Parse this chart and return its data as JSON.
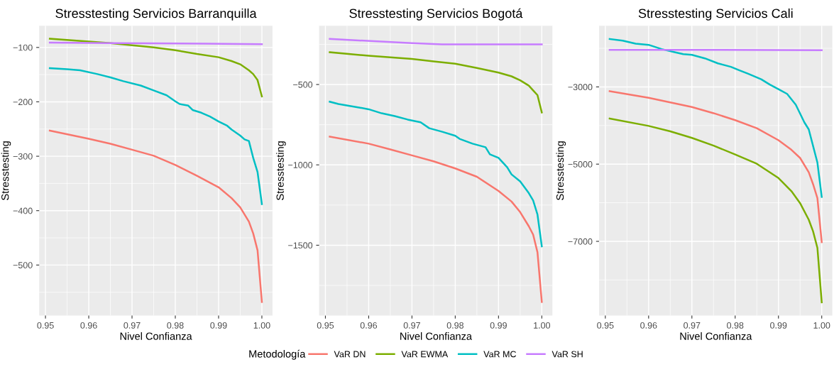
{
  "chart_data": [
    {
      "type": "line",
      "title": "Stresstesting Servicios Barranquilla",
      "xlabel": "Nivel Confianza",
      "ylabel": "Stresstesting",
      "xlim": [
        0.94855,
        1.00245
      ],
      "xticks": [
        {
          "value": 0.95,
          "label": "0.95"
        },
        {
          "value": 0.96,
          "label": "0.96"
        },
        {
          "value": 0.97,
          "label": "0.97"
        },
        {
          "value": 0.98,
          "label": "0.98"
        },
        {
          "value": 0.99,
          "label": "0.99"
        },
        {
          "value": 1.0,
          "label": "1.00"
        }
      ],
      "ylim": [
        -593,
        -60
      ],
      "yticks": [
        -500,
        -400,
        -300,
        -200,
        -100
      ],
      "grid": true,
      "legend": "bottom",
      "legend_title": "Metodología",
      "series": [
        {
          "name": "VaR DN",
          "color": "#f8766d",
          "x": [
            0.951,
            0.96,
            0.965,
            0.97,
            0.975,
            0.98,
            0.985,
            0.99,
            0.993,
            0.995,
            0.997,
            0.998,
            0.999,
            1.0
          ],
          "values": [
            -253,
            -268,
            -277,
            -288,
            -299,
            -316,
            -336,
            -357,
            -377,
            -394,
            -420,
            -442,
            -473,
            -568
          ]
        },
        {
          "name": "VaR EWMA",
          "color": "#7cae00",
          "x": [
            0.951,
            0.96,
            0.965,
            0.97,
            0.975,
            0.98,
            0.985,
            0.99,
            0.993,
            0.995,
            0.997,
            0.998,
            0.999,
            1.0
          ],
          "values": [
            -84,
            -89,
            -92,
            -96,
            -100,
            -105,
            -112,
            -118,
            -125,
            -131,
            -142,
            -149,
            -160,
            -190
          ]
        },
        {
          "name": "VaR MC",
          "color": "#00bfc4",
          "x": [
            0.951,
            0.955,
            0.958,
            0.962,
            0.965,
            0.968,
            0.972,
            0.975,
            0.978,
            0.98,
            0.981,
            0.983,
            0.984,
            0.986,
            0.988,
            0.99,
            0.992,
            0.993,
            0.995,
            0.996,
            0.997,
            0.998,
            0.999,
            1.0
          ],
          "values": [
            -138,
            -140,
            -142,
            -149,
            -155,
            -162,
            -170,
            -179,
            -188,
            -199,
            -204,
            -207,
            -215,
            -220,
            -227,
            -236,
            -244,
            -251,
            -262,
            -269,
            -272,
            -303,
            -329,
            -388
          ]
        },
        {
          "name": "VaR SH",
          "color": "#c77cff",
          "x": [
            0.951,
            0.965,
            0.987,
            1.0
          ],
          "values": [
            -91,
            -92,
            -93,
            -94
          ]
        }
      ]
    },
    {
      "type": "line",
      "title": "Stresstesting Servicios Bogotá",
      "xlabel": "Nivel Confianza",
      "ylabel": "Stresstesting",
      "xlim": [
        0.94855,
        1.00245
      ],
      "xticks": [
        {
          "value": 0.95,
          "label": "0.95"
        },
        {
          "value": 0.96,
          "label": "0.96"
        },
        {
          "value": 0.97,
          "label": "0.97"
        },
        {
          "value": 0.98,
          "label": "0.98"
        },
        {
          "value": 0.99,
          "label": "0.99"
        },
        {
          "value": 1.0,
          "label": "1.00"
        }
      ],
      "ylim": [
        -1938,
        -134
      ],
      "yticks": [
        -1500,
        -1000,
        -500
      ],
      "grid": true,
      "series": [
        {
          "color": "#f8766d",
          "x": [
            0.951,
            0.96,
            0.965,
            0.97,
            0.975,
            0.98,
            0.985,
            0.99,
            0.993,
            0.995,
            0.997,
            0.998,
            0.999,
            1.0
          ],
          "values": [
            -824,
            -868,
            -904,
            -941,
            -978,
            -1022,
            -1074,
            -1162,
            -1228,
            -1294,
            -1382,
            -1434,
            -1544,
            -1853
          ]
        },
        {
          "color": "#7cae00",
          "x": [
            0.951,
            0.96,
            0.965,
            0.97,
            0.975,
            0.98,
            0.985,
            0.99,
            0.993,
            0.995,
            0.997,
            0.998,
            0.999,
            1.0
          ],
          "values": [
            -299,
            -321,
            -331,
            -341,
            -356,
            -371,
            -397,
            -426,
            -449,
            -474,
            -507,
            -537,
            -566,
            -674
          ]
        },
        {
          "color": "#00bfc4",
          "x": [
            0.951,
            0.953,
            0.958,
            0.96,
            0.963,
            0.966,
            0.969,
            0.972,
            0.974,
            0.977,
            0.98,
            0.981,
            0.984,
            0.987,
            0.988,
            0.99,
            0.992,
            0.993,
            0.995,
            0.997,
            0.998,
            0.999,
            1.0
          ],
          "values": [
            -607,
            -621,
            -644,
            -654,
            -679,
            -696,
            -718,
            -735,
            -772,
            -794,
            -819,
            -838,
            -868,
            -890,
            -934,
            -956,
            -1015,
            -1059,
            -1103,
            -1176,
            -1221,
            -1309,
            -1507
          ]
        },
        {
          "color": "#c77cff",
          "x": [
            0.951,
            0.97,
            0.977,
            1.0
          ],
          "values": [
            -216,
            -243,
            -250,
            -250
          ]
        }
      ]
    },
    {
      "type": "line",
      "title": "Stresstesting Servicios Cali",
      "xlabel": "Nivel Confianza",
      "ylabel": "Stresstesting",
      "xlim": [
        0.94855,
        1.00245
      ],
      "xticks": [
        {
          "value": 0.95,
          "label": "0.95"
        },
        {
          "value": 0.96,
          "label": "0.96"
        },
        {
          "value": 0.97,
          "label": "0.97"
        },
        {
          "value": 0.98,
          "label": "0.98"
        },
        {
          "value": 0.99,
          "label": "0.99"
        },
        {
          "value": 1.0,
          "label": "1.00"
        }
      ],
      "ylim": [
        -8924,
        -1414
      ],
      "yticks": [
        -7000,
        -5000,
        -3000
      ],
      "grid": true,
      "series": [
        {
          "color": "#f8766d",
          "x": [
            0.951,
            0.96,
            0.965,
            0.97,
            0.975,
            0.98,
            0.985,
            0.99,
            0.993,
            0.995,
            0.997,
            0.998,
            0.999,
            1.0
          ],
          "values": [
            -3110,
            -3280,
            -3400,
            -3520,
            -3680,
            -3860,
            -4070,
            -4380,
            -4630,
            -4840,
            -5210,
            -5520,
            -5880,
            -7020
          ]
        },
        {
          "color": "#7cae00",
          "x": [
            0.951,
            0.96,
            0.965,
            0.97,
            0.975,
            0.98,
            0.985,
            0.99,
            0.993,
            0.995,
            0.997,
            0.998,
            0.999,
            1.0
          ],
          "values": [
            -3820,
            -4010,
            -4150,
            -4320,
            -4520,
            -4750,
            -4990,
            -5360,
            -5700,
            -6010,
            -6440,
            -6740,
            -7170,
            -8580
          ]
        },
        {
          "color": "#00bfc4",
          "x": [
            0.951,
            0.954,
            0.957,
            0.96,
            0.963,
            0.966,
            0.968,
            0.97,
            0.973,
            0.976,
            0.979,
            0.981,
            0.983,
            0.986,
            0.988,
            0.99,
            0.992,
            0.994,
            0.996,
            0.997,
            0.998,
            0.999,
            1.0
          ],
          "values": [
            -1760,
            -1800,
            -1880,
            -1910,
            -2020,
            -2100,
            -2150,
            -2170,
            -2260,
            -2390,
            -2480,
            -2570,
            -2660,
            -2800,
            -2940,
            -3060,
            -3180,
            -3460,
            -3920,
            -4100,
            -4530,
            -4960,
            -5850
          ]
        },
        {
          "color": "#c77cff",
          "x": [
            0.951,
            0.97,
            1.0
          ],
          "values": [
            -2040,
            -2040,
            -2050
          ]
        }
      ]
    }
  ]
}
